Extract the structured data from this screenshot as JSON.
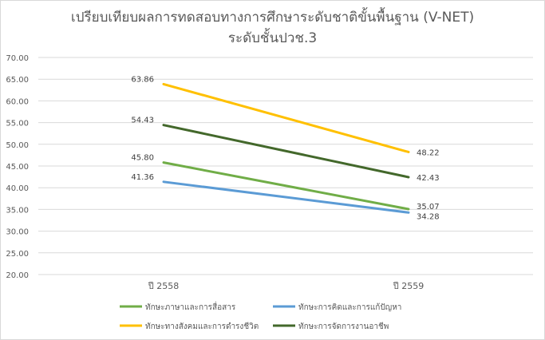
{
  "chart_data": {
    "type": "line",
    "title": "เปรียบเทียบผลการทดสอบทางการศึกษาระดับชาติขั้นพื้นฐาน (V-NET)",
    "subtitle": "ระดับชั้นปวช.3",
    "categories": [
      "ปี 2558",
      "ปี 2559"
    ],
    "ylim": [
      20,
      70
    ],
    "yticks": [
      "20.00",
      "25.00",
      "30.00",
      "35.00",
      "40.00",
      "45.00",
      "50.00",
      "55.00",
      "60.00",
      "65.00",
      "70.00"
    ],
    "grid": true,
    "legend_position": "bottom",
    "series": [
      {
        "name": "ทักษะภาษาและการสื่อสาร",
        "values": [
          45.8,
          35.07
        ],
        "labels": [
          "45.80",
          "35.07"
        ],
        "color": "#70ad47"
      },
      {
        "name": "ทักษะการคิดและการแก้ปัญหา",
        "values": [
          41.36,
          34.28
        ],
        "labels": [
          "41.36",
          "34.28"
        ],
        "color": "#5b9bd5"
      },
      {
        "name": "ทักษะทางสังคมและการดำรงชีวิต",
        "values": [
          63.86,
          48.22
        ],
        "labels": [
          "63.86",
          "48.22"
        ],
        "color": "#ffc000"
      },
      {
        "name": "ทักษะการจัดการงานอาชีพ",
        "values": [
          54.43,
          42.43
        ],
        "labels": [
          "54.43",
          "42.43"
        ],
        "color": "#43682b"
      }
    ]
  }
}
